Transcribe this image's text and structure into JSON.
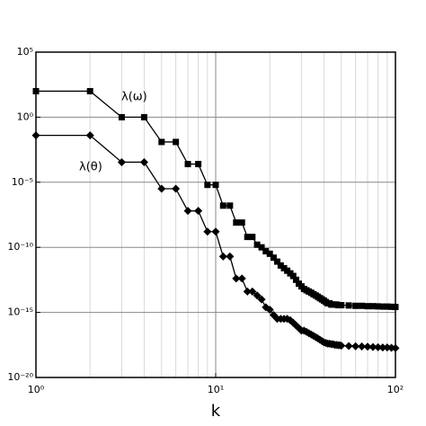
{
  "chart_data": {
    "type": "line",
    "x_label": "k",
    "xscale": "log",
    "yscale": "log",
    "xlim": [
      1,
      100
    ],
    "ylim": [
      1e-20,
      100000.0
    ],
    "xticks": [
      {
        "value": 1,
        "label": "10⁰"
      },
      {
        "value": 10,
        "label": "10¹"
      },
      {
        "value": 100,
        "label": "10²"
      }
    ],
    "x_minor_ticks": [
      2,
      3,
      4,
      5,
      6,
      7,
      8,
      9,
      20,
      30,
      40,
      50,
      60,
      70,
      80,
      90
    ],
    "yticks": [
      {
        "value": 1e-20,
        "label": "10⁻²⁰"
      },
      {
        "value": 1e-15,
        "label": "10⁻¹⁵"
      },
      {
        "value": 1e-10,
        "label": "10⁻¹⁰"
      },
      {
        "value": 1e-05,
        "label": "10⁻⁵"
      },
      {
        "value": 1,
        "label": "10⁰"
      },
      {
        "value": 100000.0,
        "label": "10⁵"
      }
    ],
    "grid": true,
    "x": [
      1,
      2,
      3,
      4,
      5,
      6,
      7,
      8,
      9,
      10,
      11,
      12,
      13,
      14,
      15,
      16,
      17,
      18,
      19,
      20,
      21,
      22,
      23,
      24,
      25,
      26,
      27,
      28,
      29,
      30,
      31,
      32,
      33,
      34,
      35,
      36,
      37,
      38,
      39,
      40,
      41,
      42,
      43,
      44,
      45,
      46,
      47,
      48,
      49,
      50,
      55,
      60,
      65,
      70,
      75,
      80,
      85,
      90,
      95,
      100
    ],
    "series": [
      {
        "name": "λ(ω)",
        "color": "#000000",
        "marker": "square",
        "values": [
          100.0,
          100.0,
          1,
          1,
          0.0125,
          0.0125,
          0.00025,
          0.00025,
          6.3e-06,
          6.3e-06,
          1.6e-07,
          1.6e-07,
          8e-09,
          8e-09,
          6.3e-10,
          6.3e-10,
          1.6e-10,
          1e-10,
          5e-11,
          3.2e-11,
          1.6e-11,
          8e-12,
          4e-12,
          2.5e-12,
          1.6e-12,
          1e-12,
          6.3e-13,
          3.2e-13,
          1.6e-13,
          1e-13,
          6.3e-14,
          5e-14,
          4e-14,
          3.2e-14,
          2.5e-14,
          2e-14,
          1.6e-14,
          1.25e-14,
          1e-14,
          8e-15,
          6.3e-15,
          5e-15,
          5e-15,
          4e-15,
          4e-15,
          4e-15,
          4e-15,
          3.6e-15,
          3.6e-15,
          3.6e-15,
          3.4e-15,
          3.2e-15,
          3.2e-15,
          3e-15,
          3e-15,
          2.9e-15,
          2.8e-15,
          2.8e-15,
          2.7e-15,
          2.6e-15
        ]
      },
      {
        "name": "λ(θ)",
        "color": "#000000",
        "marker": "diamond",
        "values": [
          0.04,
          0.04,
          0.00035,
          0.00035,
          3.2e-06,
          3.2e-06,
          6.3e-08,
          6.3e-08,
          1.6e-09,
          1.6e-09,
          2e-11,
          2e-11,
          4e-13,
          4e-13,
          4e-14,
          4e-14,
          2e-14,
          1e-14,
          2.5e-15,
          1.6e-15,
          6.3e-16,
          3.2e-16,
          3.2e-16,
          3.2e-16,
          3.2e-16,
          2.5e-16,
          1.6e-16,
          1e-16,
          6.3e-17,
          4e-17,
          4e-17,
          3.2e-17,
          2.5e-17,
          2e-17,
          1.6e-17,
          1.25e-17,
          1e-17,
          8e-18,
          6.3e-18,
          5e-18,
          4.5e-18,
          4e-18,
          4e-18,
          3.6e-18,
          3.6e-18,
          3.2e-18,
          3.2e-18,
          3e-18,
          3e-18,
          2.8e-18,
          2.6e-18,
          2.5e-18,
          2.4e-18,
          2.3e-18,
          2.2e-18,
          2.1e-18,
          2e-18,
          2e-18,
          1.9e-18,
          1.8e-18
        ]
      }
    ]
  }
}
